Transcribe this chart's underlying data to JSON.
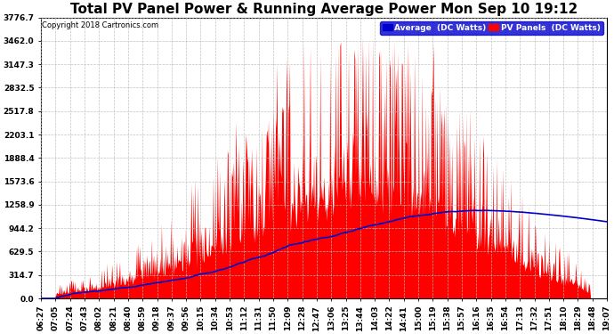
{
  "title": "Total PV Panel Power & Running Average Power Mon Sep 10 19:12",
  "copyright": "Copyright 2018 Cartronics.com",
  "legend_avg": "Average  (DC Watts)",
  "legend_pv": "PV Panels  (DC Watts)",
  "ylabel_values": [
    0.0,
    314.7,
    629.5,
    944.2,
    1258.9,
    1573.6,
    1888.4,
    2203.1,
    2517.8,
    2832.5,
    3147.3,
    3462.0,
    3776.7
  ],
  "ymax": 3776.7,
  "ymin": 0.0,
  "background_color": "#ffffff",
  "plot_bg_color": "#ffffff",
  "grid_color": "#aaaaaa",
  "bar_color": "#ff0000",
  "avg_color": "#0000cc",
  "title_fontsize": 11,
  "tick_label_fontsize": 6.5,
  "n_points": 800,
  "tick_labels": [
    "06:27",
    "07:05",
    "07:24",
    "07:43",
    "08:02",
    "08:21",
    "08:40",
    "08:59",
    "09:18",
    "09:37",
    "09:56",
    "10:15",
    "10:34",
    "10:53",
    "11:12",
    "11:31",
    "11:50",
    "12:09",
    "12:28",
    "12:47",
    "13:06",
    "13:25",
    "13:44",
    "14:03",
    "14:22",
    "14:41",
    "15:00",
    "15:19",
    "15:38",
    "15:57",
    "16:16",
    "16:35",
    "16:54",
    "17:13",
    "17:32",
    "17:51",
    "18:10",
    "18:29",
    "18:48",
    "19:07"
  ]
}
